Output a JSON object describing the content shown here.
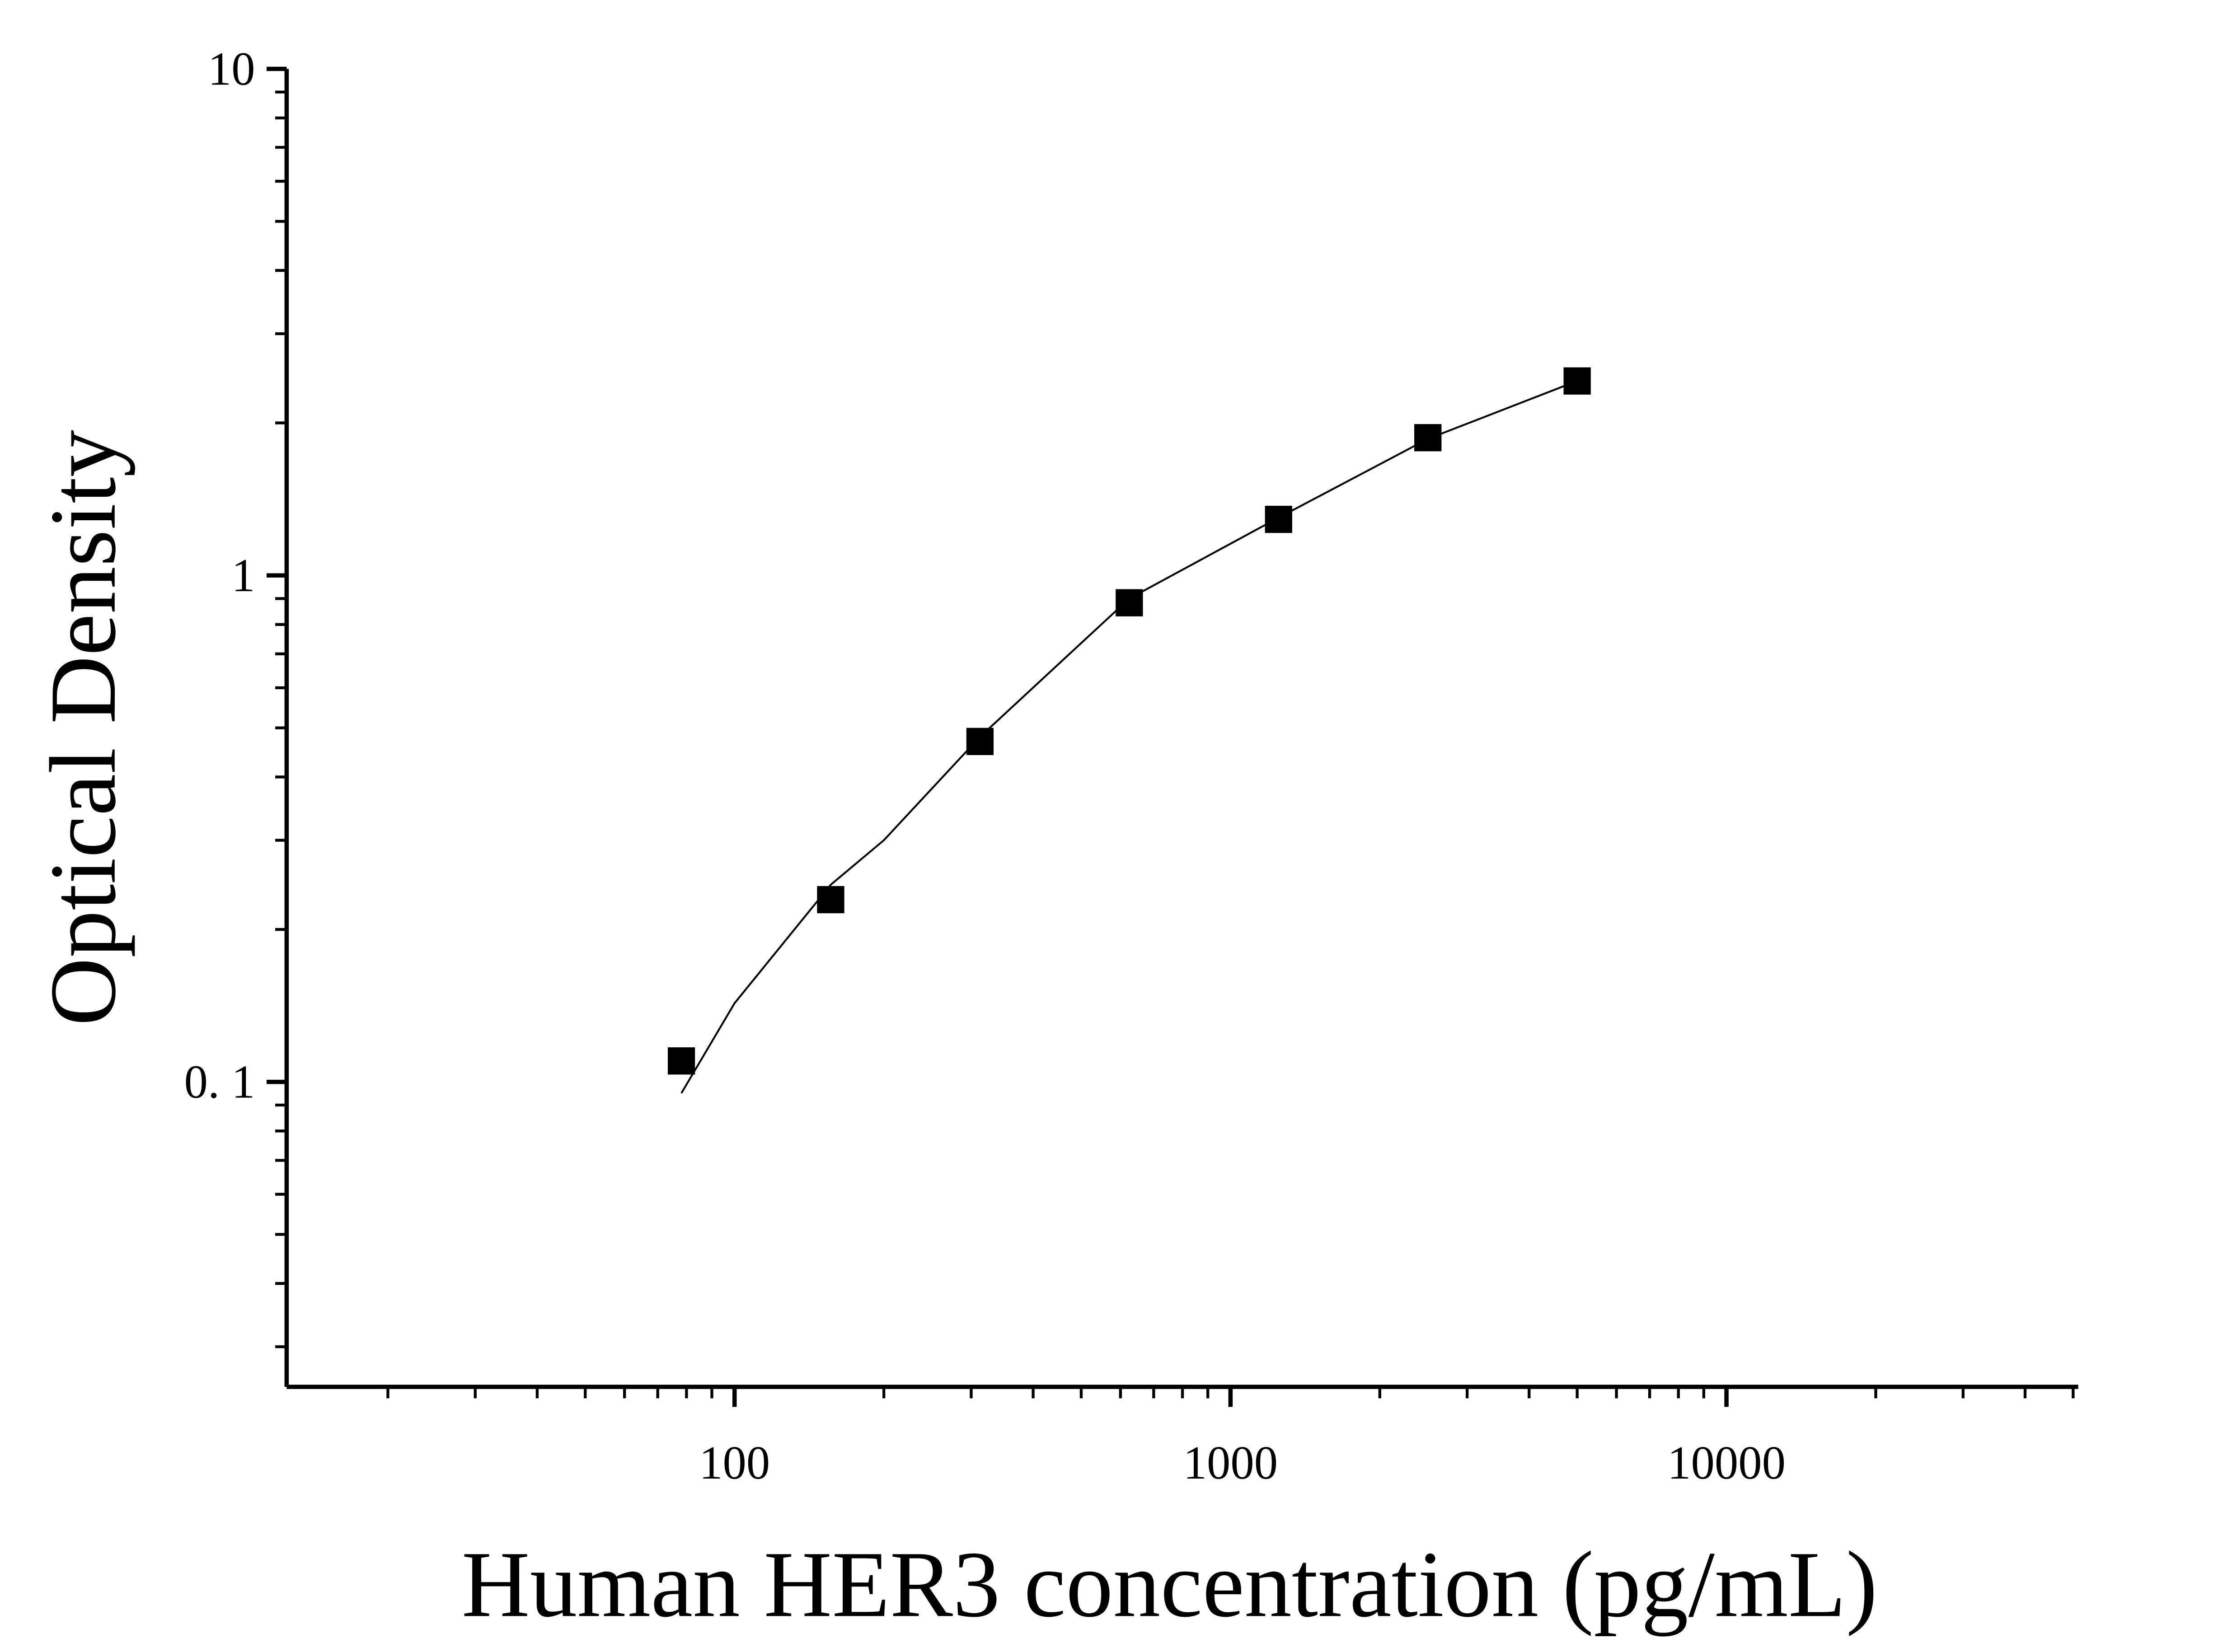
{
  "chart_data": {
    "type": "scatter",
    "x_label": "Human HER3 concentration (pg/mL)",
    "y_label": "Optical Density",
    "x": [
      78.125,
      156.25,
      312.5,
      625,
      1250,
      2500,
      5000
    ],
    "values": [
      0.11,
      0.229,
      0.47,
      0.883,
      1.29,
      1.87,
      2.42
    ],
    "color": "#000000",
    "fit": {
      "x": [
        78.125,
        100,
        156.25,
        200,
        312.5,
        625,
        1250,
        2500,
        5000
      ],
      "values": [
        0.095,
        0.143,
        0.245,
        0.3,
        0.48,
        0.9,
        1.3,
        1.86,
        2.42
      ],
      "color": "#000000"
    },
    "xscale": "log",
    "yscale": "log",
    "xlim": [
      12.5,
      51200
    ],
    "ylim": [
      0.025,
      10
    ],
    "xticks": [
      100,
      1000,
      10000
    ],
    "yticks": [
      10,
      1,
      {
        "value": 0.1,
        "label": "0. 1"
      }
    ],
    "xminorticks": [
      20,
      30,
      40,
      50,
      60,
      70,
      80,
      90,
      200,
      300,
      400,
      500,
      600,
      700,
      800,
      900,
      2000,
      3000,
      4000,
      5000,
      6000,
      7000,
      8000,
      9000,
      20000,
      30000,
      40000,
      50000
    ],
    "yminorticks": [
      0.03,
      0.04,
      0.05,
      0.06,
      0.07,
      0.08,
      0.09,
      0.2,
      0.3,
      0.4,
      0.5,
      0.6,
      0.7,
      0.8,
      0.9,
      2,
      3,
      4,
      5,
      6,
      7,
      8,
      9
    ],
    "grid": false
  }
}
